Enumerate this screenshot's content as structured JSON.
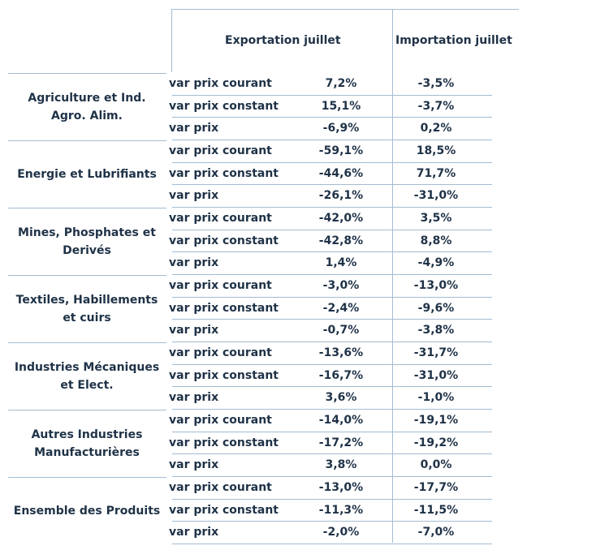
{
  "header": {
    "export_label": "Exportation juillet",
    "import_label": "Importation juillet"
  },
  "groups": [
    {
      "label": "Agriculture et Ind. Agro. Alim.",
      "rows": [
        {
          "label": "var prix courant",
          "export": "7,2%",
          "import": "-3,5%"
        },
        {
          "label": "var prix constant",
          "export": "15,1%",
          "import": "-3,7%"
        },
        {
          "label": "var prix",
          "export": "-6,9%",
          "import": "0,2%"
        }
      ]
    },
    {
      "label": "Energie et Lubrifiants",
      "rows": [
        {
          "label": "var prix courant",
          "export": "-59,1%",
          "import": "18,5%"
        },
        {
          "label": "var prix constant",
          "export": "-44,6%",
          "import": "71,7%"
        },
        {
          "label": "var prix",
          "export": "-26,1%",
          "import": "-31,0%"
        }
      ]
    },
    {
      "label": "Mines, Phosphates et Derivés",
      "rows": [
        {
          "label": "var prix courant",
          "export": "-42,0%",
          "import": "3,5%"
        },
        {
          "label": "var prix constant",
          "export": "-42,8%",
          "import": "8,8%"
        },
        {
          "label": "var prix",
          "export": "1,4%",
          "import": "-4,9%"
        }
      ]
    },
    {
      "label": "Textiles, Habillements et cuirs",
      "rows": [
        {
          "label": "var prix courant",
          "export": "-3,0%",
          "import": "-13,0%"
        },
        {
          "label": "var prix constant",
          "export": "-2,4%",
          "import": "-9,6%"
        },
        {
          "label": "var prix",
          "export": "-0,7%",
          "import": "-3,8%"
        }
      ]
    },
    {
      "label": "Industries Mécaniques et Elect.",
      "rows": [
        {
          "label": "var prix courant",
          "export": "-13,6%",
          "import": "-31,7%"
        },
        {
          "label": "var prix constant",
          "export": "-16,7%",
          "import": "-31,0%"
        },
        {
          "label": "var prix",
          "export": "3,6%",
          "import": "-1,0%"
        }
      ]
    },
    {
      "label": "Autres Industries Manufacturières",
      "rows": [
        {
          "label": "var prix courant",
          "export": "-14,0%",
          "import": "-19,1%"
        },
        {
          "label": "var prix constant",
          "export": "-17,2%",
          "import": "-19,2%"
        },
        {
          "label": "var prix",
          "export": "3,8%",
          "import": "0,0%"
        }
      ]
    },
    {
      "label": "Ensemble des Produits",
      "rows": [
        {
          "label": "var prix courant",
          "export": "-13,0%",
          "import": "-17,7%"
        },
        {
          "label": "var prix constant",
          "export": "-11,3%",
          "import": "-11,5%"
        },
        {
          "label": "var prix",
          "export": "-2,0%",
          "import": "-7,0%"
        }
      ]
    }
  ]
}
